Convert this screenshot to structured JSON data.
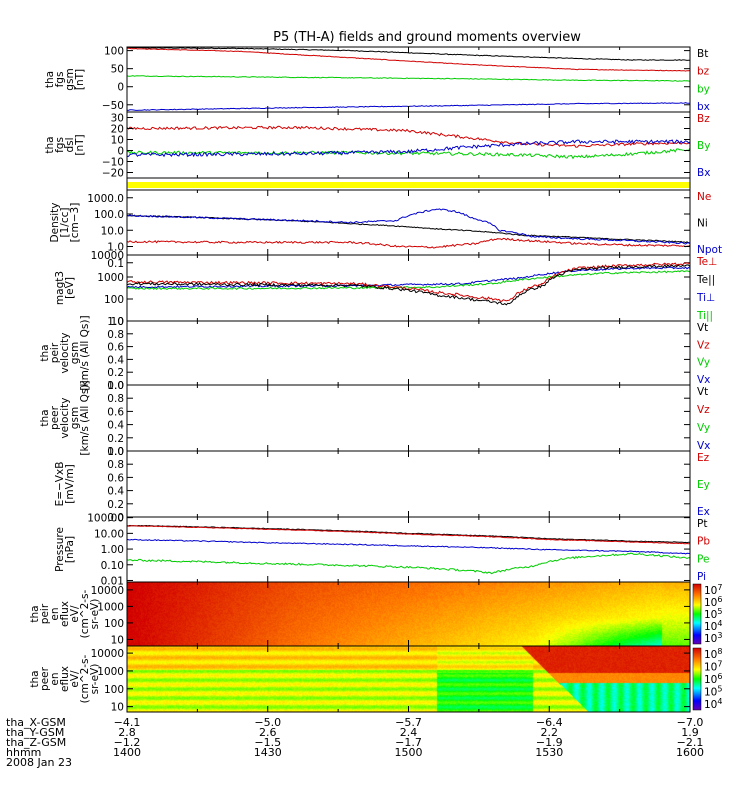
{
  "chart_data": {
    "type": "line",
    "title": "P5 (TH-A) fields and ground moments overview",
    "x": {
      "start_hhmm": "1400",
      "end_hhmm": "1600",
      "tick_labels": [
        "1400",
        "1430",
        "1500",
        "1530",
        "1600"
      ]
    },
    "panels": [
      {
        "id": "fgs-gsm",
        "ylabel_lines": [
          "tha",
          "fgs",
          "gsm",
          "[nT]"
        ],
        "ymin": -70,
        "ymax": 110,
        "scale": "linear",
        "ticks": [
          {
            "v": 100,
            "l": "100"
          },
          {
            "v": 50,
            "l": "50"
          },
          {
            "v": 0,
            "l": "0"
          },
          {
            "v": -50,
            "l": "−50"
          }
        ],
        "legend": [
          {
            "label": "Bt",
            "color": "#000000"
          },
          {
            "label": "bz",
            "color": "#d00000"
          },
          {
            "label": "by",
            "color": "#00cc00"
          },
          {
            "label": "bx",
            "color": "#0000cc"
          }
        ],
        "series": [
          {
            "color": "#000000",
            "t": [
              0.0,
              0.2,
              0.4,
              0.6,
              0.8,
              0.9,
              1.0
            ],
            "v": [
              108,
              106,
              100,
              88,
              78,
              74,
              74
            ],
            "noise": 1.0
          },
          {
            "color": "#d00000",
            "t": [
              0.0,
              0.2,
              0.4,
              0.6,
              0.8,
              1.0
            ],
            "v": [
              106,
              98,
              80,
              62,
              48,
              44
            ],
            "noise": 0.8
          },
          {
            "color": "#00cc00",
            "t": [
              0.0,
              0.3,
              0.6,
              0.8,
              1.0
            ],
            "v": [
              30,
              26,
              22,
              18,
              16
            ],
            "noise": 1.0
          },
          {
            "color": "#0000cc",
            "t": [
              0.0,
              0.3,
              0.6,
              0.8,
              1.0
            ],
            "v": [
              -65,
              -58,
              -52,
              -47,
              -45
            ],
            "noise": 1.0
          }
        ]
      },
      {
        "id": "fgs-dsl",
        "ylabel_lines": [
          "tha",
          "fgs",
          "dsl",
          "[nT]"
        ],
        "ymin": -25,
        "ymax": 35,
        "scale": "linear",
        "ticks": [
          {
            "v": 30,
            "l": "30"
          },
          {
            "v": 20,
            "l": "20"
          },
          {
            "v": 10,
            "l": "10"
          },
          {
            "v": 0,
            "l": "0"
          },
          {
            "v": -10,
            "l": "−10"
          },
          {
            "v": -20,
            "l": "−20"
          }
        ],
        "legend": [
          {
            "label": "Bz",
            "color": "#d00000"
          },
          {
            "label": "By",
            "color": "#00cc00"
          },
          {
            "label": "Bx",
            "color": "#0000cc"
          }
        ],
        "series": [
          {
            "color": "#d00000",
            "t": [
              0.0,
              0.3,
              0.5,
              0.6,
              0.7,
              0.8,
              0.9,
              1.0
            ],
            "v": [
              20,
              21,
              18,
              12,
              6,
              4,
              6,
              7
            ],
            "noise": 1.2
          },
          {
            "color": "#00cc00",
            "t": [
              0.0,
              0.4,
              0.6,
              0.7,
              0.8,
              0.9,
              1.0
            ],
            "v": [
              -2,
              -2,
              -3,
              -4,
              -6,
              -3,
              1
            ],
            "noise": 1.4
          },
          {
            "color": "#0000cc",
            "t": [
              0.0,
              0.3,
              0.5,
              0.6,
              0.7,
              0.8,
              1.0
            ],
            "v": [
              -4,
              -3,
              -1,
              3,
              6,
              8,
              8
            ],
            "noise": 1.6
          }
        ]
      },
      {
        "id": "flag",
        "ylabel_lines": [],
        "band_color": "#ffff00"
      },
      {
        "id": "density",
        "ylabel_lines": [
          "Density",
          "[1/cc]",
          "[cm−3]"
        ],
        "ymin": 0.3,
        "ymax": 3000,
        "scale": "log",
        "ticks": [
          {
            "v": 1000,
            "l": "1000.0"
          },
          {
            "v": 100,
            "l": "100.0"
          },
          {
            "v": 10,
            "l": "10.0"
          },
          {
            "v": 1,
            "l": "1.0"
          },
          {
            "v": 0.1,
            "l": "0.1"
          }
        ],
        "legend": [
          {
            "label": "Ne",
            "color": "#d00000"
          },
          {
            "label": "Ni",
            "color": "#000000"
          },
          {
            "label": "Npot",
            "color": "#0000cc"
          }
        ],
        "series": [
          {
            "color": "#000000",
            "t": [
              0.0,
              0.2,
              0.4,
              0.55,
              0.7,
              0.85,
              1.0
            ],
            "v": [
              80,
              50,
              25,
              12,
              5,
              3,
              1.8
            ],
            "noise": 0.03
          },
          {
            "color": "#0000cc",
            "t": [
              0.0,
              0.2,
              0.4,
              0.48,
              0.52,
              0.55,
              0.58,
              0.61,
              0.66,
              0.72,
              0.8,
              0.9,
              1.0
            ],
            "v": [
              80,
              50,
              30,
              40,
              120,
              200,
              150,
              60,
              10,
              4,
              3,
              2.2,
              1.5
            ],
            "noise": 0.05
          },
          {
            "color": "#d00000",
            "t": [
              0.0,
              0.2,
              0.4,
              0.48,
              0.55,
              0.62,
              0.66,
              0.72,
              0.8,
              0.9,
              1.0
            ],
            "v": [
              2,
              1.8,
              1.8,
              1.0,
              0.9,
              1.5,
              3,
              2.2,
              1.5,
              1.2,
              1.1
            ],
            "noise": 0.06
          }
        ]
      },
      {
        "id": "temperature",
        "ylabel_lines": [
          "magt3",
          "[eV]"
        ],
        "ymin": 10,
        "ymax": 10000,
        "scale": "log",
        "ticks": [
          {
            "v": 10000,
            "l": "10000"
          },
          {
            "v": 1000,
            "l": "1000"
          },
          {
            "v": 100,
            "l": "100"
          },
          {
            "v": 10,
            "l": "10"
          }
        ],
        "legend": [
          {
            "label": "Te⊥",
            "color": "#d00000"
          },
          {
            "label": "Te||",
            "color": "#000000"
          },
          {
            "label": "Ti⊥",
            "color": "#0000cc"
          },
          {
            "label": "Ti||",
            "color": "#00cc00"
          }
        ],
        "series": [
          {
            "color": "#0000cc",
            "t": [
              0.0,
              0.2,
              0.4,
              0.6,
              0.7,
              0.8,
              0.9,
              1.0
            ],
            "v": [
              350,
              380,
              400,
              500,
              900,
              2000,
              2500,
              2600
            ],
            "noise": 0.04
          },
          {
            "color": "#00cc00",
            "t": [
              0.0,
              0.2,
              0.4,
              0.55,
              0.65,
              0.75,
              0.85,
              1.0
            ],
            "v": [
              300,
              300,
              320,
              350,
              500,
              1000,
              1500,
              1800
            ],
            "noise": 0.04
          },
          {
            "color": "#d00000",
            "t": [
              0.0,
              0.2,
              0.4,
              0.5,
              0.55,
              0.62,
              0.68,
              0.74,
              0.8,
              0.9,
              1.0
            ],
            "v": [
              600,
              550,
              500,
              300,
              200,
              120,
              80,
              500,
              2500,
              3500,
              4000
            ],
            "noise": 0.06
          },
          {
            "color": "#000000",
            "t": [
              0.0,
              0.2,
              0.4,
              0.5,
              0.55,
              0.62,
              0.68,
              0.74,
              0.8,
              0.9,
              1.0
            ],
            "v": [
              500,
              450,
              420,
              250,
              150,
              90,
              55,
              400,
              2200,
              3000,
              3200
            ],
            "noise": 0.06
          }
        ]
      },
      {
        "id": "peir-velocity",
        "ylabel_lines": [
          "tha",
          "peir",
          "velocity",
          "gsm",
          "[km/s (All Qs)]"
        ],
        "ymin": 0,
        "ymax": 1,
        "scale": "linear",
        "ticks": [
          {
            "v": 1.0,
            "l": "1.0"
          },
          {
            "v": 0.8,
            "l": "0.8"
          },
          {
            "v": 0.6,
            "l": "0.6"
          },
          {
            "v": 0.4,
            "l": "0.4"
          },
          {
            "v": 0.2,
            "l": "0.2"
          },
          {
            "v": 0.0,
            "l": "0.0"
          }
        ],
        "legend": [
          {
            "label": "Vt",
            "color": "#000000"
          },
          {
            "label": "Vz",
            "color": "#d00000"
          },
          {
            "label": "Vy",
            "color": "#00cc00"
          },
          {
            "label": "Vx",
            "color": "#0000cc"
          }
        ],
        "series": []
      },
      {
        "id": "peer-velocity",
        "ylabel_lines": [
          "tha",
          "peer",
          "velocity",
          "gsm",
          "[km/s (All Qs)]"
        ],
        "ymin": 0,
        "ymax": 1,
        "scale": "linear",
        "ticks": [
          {
            "v": 1.0,
            "l": "1.0"
          },
          {
            "v": 0.8,
            "l": "0.8"
          },
          {
            "v": 0.6,
            "l": "0.6"
          },
          {
            "v": 0.4,
            "l": "0.4"
          },
          {
            "v": 0.2,
            "l": "0.2"
          },
          {
            "v": 0.0,
            "l": "0.0"
          }
        ],
        "legend": [
          {
            "label": "Vt",
            "color": "#000000"
          },
          {
            "label": "Vz",
            "color": "#d00000"
          },
          {
            "label": "Vy",
            "color": "#00cc00"
          },
          {
            "label": "Vx",
            "color": "#0000cc"
          }
        ],
        "series": []
      },
      {
        "id": "efield",
        "ylabel_lines": [
          "E=−VxB",
          "[mV/m]"
        ],
        "ymin": 0,
        "ymax": 1,
        "scale": "linear",
        "ticks": [
          {
            "v": 1.0,
            "l": "1.0"
          },
          {
            "v": 0.8,
            "l": "0.8"
          },
          {
            "v": 0.6,
            "l": "0.6"
          },
          {
            "v": 0.4,
            "l": "0.4"
          },
          {
            "v": 0.2,
            "l": "0.2"
          },
          {
            "v": 0.0,
            "l": "0.0"
          }
        ],
        "legend": [
          {
            "label": "Ez",
            "color": "#d00000"
          },
          {
            "label": "Ey",
            "color": "#00cc00"
          },
          {
            "label": "Ex",
            "color": "#0000cc"
          }
        ],
        "series": []
      },
      {
        "id": "pressure",
        "ylabel_lines": [
          "Pressure",
          "[nPa]"
        ],
        "ymin": 0.008,
        "ymax": 110,
        "scale": "log",
        "ticks": [
          {
            "v": 100,
            "l": "100.00"
          },
          {
            "v": 10,
            "l": "10.00"
          },
          {
            "v": 1,
            "l": "1.00"
          },
          {
            "v": 0.1,
            "l": "0.10"
          },
          {
            "v": 0.01,
            "l": "0.01"
          }
        ],
        "legend": [
          {
            "label": "Pt",
            "color": "#000000"
          },
          {
            "label": "Pb",
            "color": "#d00000"
          },
          {
            "label": "Pe",
            "color": "#00cc00"
          },
          {
            "label": "Pi",
            "color": "#0000cc"
          }
        ],
        "series": [
          {
            "color": "#000000",
            "t": [
              0.0,
              0.25,
              0.5,
              0.75,
              0.9,
              1.0
            ],
            "v": [
              32,
              20,
              10,
              4.5,
              3.2,
              2.6
            ],
            "noise": 0.02
          },
          {
            "color": "#d00000",
            "t": [
              0.0,
              0.25,
              0.5,
              0.75,
              0.9,
              1.0
            ],
            "v": [
              30,
              18,
              9,
              4,
              2.8,
              2.2
            ],
            "noise": 0.02
          },
          {
            "color": "#0000cc",
            "t": [
              0.0,
              0.25,
              0.5,
              0.75,
              0.9,
              1.0
            ],
            "v": [
              4,
              2.5,
              1.6,
              0.9,
              0.7,
              0.5
            ],
            "noise": 0.03
          },
          {
            "color": "#00cc00",
            "t": [
              0.0,
              0.25,
              0.5,
              0.65,
              0.72,
              0.8,
              0.9,
              1.0
            ],
            "v": [
              0.2,
              0.12,
              0.07,
              0.03,
              0.08,
              0.3,
              0.5,
              0.25
            ],
            "noise": 0.06
          }
        ]
      },
      {
        "id": "peir-eflux",
        "ylabel_lines": [
          "tha",
          "peir",
          "en",
          "eflux",
          "eV/",
          "(cm^2-s-",
          "sr-eV)"
        ],
        "ymin": 4,
        "ymax": 30000,
        "scale": "log",
        "spectrogram": "ion",
        "ticks": [
          {
            "v": 10000,
            "l": "10000"
          },
          {
            "v": 1000,
            "l": "1000"
          },
          {
            "v": 100,
            "l": "100"
          },
          {
            "v": 10,
            "l": "10"
          }
        ],
        "colorbar": {
          "exp_labels": [
            "7",
            "6",
            "5",
            "4",
            "3"
          ]
        }
      },
      {
        "id": "peer-eflux",
        "ylabel_lines": [
          "tha",
          "peer",
          "en",
          "eflux",
          "eV/",
          "(cm^2-s-",
          "sr-eV)"
        ],
        "ymin": 5,
        "ymax": 25000,
        "scale": "log",
        "spectrogram": "electron",
        "ticks": [
          {
            "v": 10000,
            "l": "10000"
          },
          {
            "v": 1000,
            "l": "1000"
          },
          {
            "v": 100,
            "l": "100"
          },
          {
            "v": 10,
            "l": "10"
          }
        ],
        "colorbar": {
          "exp_labels": [
            "8",
            "7",
            "6",
            "5",
            "4"
          ]
        }
      }
    ],
    "footer": {
      "rows": [
        {
          "label": "tha_X-GSM",
          "values": [
            "−4.1",
            "−5.0",
            "−5.7",
            "−6.4",
            "−7.0"
          ]
        },
        {
          "label": "tha_Y-GSM",
          "values": [
            "2.8",
            "2.6",
            "2.4",
            "2.2",
            "1.9"
          ]
        },
        {
          "label": "tha_Z-GSM",
          "values": [
            "−1.2",
            "−1.5",
            "−1.7",
            "−1.9",
            "−2.1"
          ]
        },
        {
          "label": "hhmm",
          "values": [
            "1400",
            "1430",
            "1500",
            "1530",
            "1600"
          ]
        }
      ],
      "date": "2008 Jan 23"
    }
  }
}
